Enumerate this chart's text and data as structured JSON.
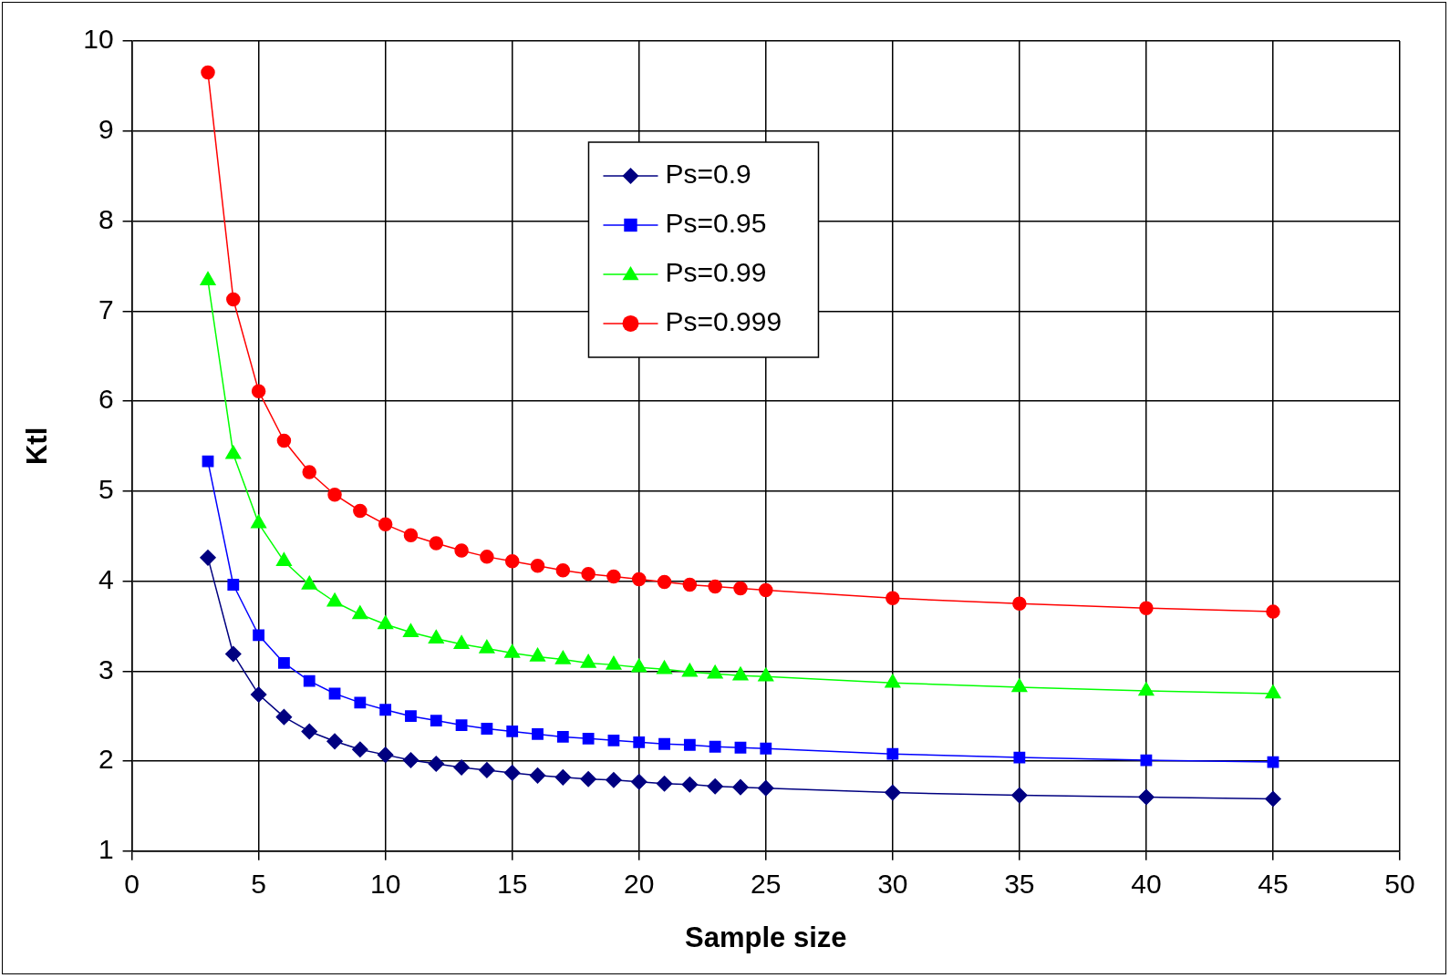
{
  "chart_data": {
    "type": "line",
    "xlabel": "Sample size",
    "ylabel": "Ktl",
    "x": [
      3,
      4,
      5,
      6,
      7,
      8,
      9,
      10,
      11,
      12,
      13,
      14,
      15,
      16,
      17,
      18,
      19,
      20,
      21,
      22,
      23,
      24,
      25,
      30,
      35,
      40,
      45
    ],
    "series": [
      {
        "name": "Ps=0.9",
        "color": "#000080",
        "marker": "diamond",
        "values": [
          4.26,
          3.19,
          2.74,
          2.49,
          2.33,
          2.22,
          2.13,
          2.07,
          2.01,
          1.97,
          1.93,
          1.9,
          1.87,
          1.84,
          1.82,
          1.8,
          1.79,
          1.77,
          1.75,
          1.74,
          1.72,
          1.71,
          1.7,
          1.65,
          1.62,
          1.6,
          1.58
        ]
      },
      {
        "name": "Ps=0.95",
        "color": "#0000ff",
        "marker": "square",
        "values": [
          5.33,
          3.96,
          3.4,
          3.09,
          2.89,
          2.75,
          2.65,
          2.57,
          2.5,
          2.45,
          2.4,
          2.36,
          2.33,
          2.3,
          2.27,
          2.25,
          2.23,
          2.21,
          2.19,
          2.18,
          2.16,
          2.15,
          2.14,
          2.08,
          2.04,
          2.01,
          1.99
        ]
      },
      {
        "name": "Ps=0.99",
        "color": "#00ff00",
        "marker": "triangle",
        "values": [
          7.34,
          5.41,
          4.64,
          4.22,
          3.96,
          3.77,
          3.63,
          3.52,
          3.43,
          3.36,
          3.3,
          3.25,
          3.2,
          3.16,
          3.13,
          3.09,
          3.07,
          3.04,
          3.02,
          2.99,
          2.97,
          2.95,
          2.94,
          2.87,
          2.82,
          2.78,
          2.75
        ]
      },
      {
        "name": "Ps=0.999",
        "color": "#ff0000",
        "marker": "circle",
        "values": [
          9.65,
          7.13,
          6.11,
          5.56,
          5.21,
          4.96,
          4.78,
          4.63,
          4.51,
          4.42,
          4.34,
          4.27,
          4.22,
          4.17,
          4.12,
          4.08,
          4.05,
          4.02,
          3.99,
          3.96,
          3.94,
          3.92,
          3.9,
          3.81,
          3.75,
          3.7,
          3.66
        ]
      }
    ],
    "xlim": [
      0,
      50
    ],
    "xticks": [
      0,
      5,
      10,
      15,
      20,
      25,
      30,
      35,
      40,
      45,
      50
    ],
    "ylim": [
      1,
      10
    ],
    "yticks": [
      1,
      2,
      3,
      4,
      5,
      6,
      7,
      8,
      9,
      10
    ],
    "grid": true,
    "legend": "top",
    "line_style": "solid"
  }
}
